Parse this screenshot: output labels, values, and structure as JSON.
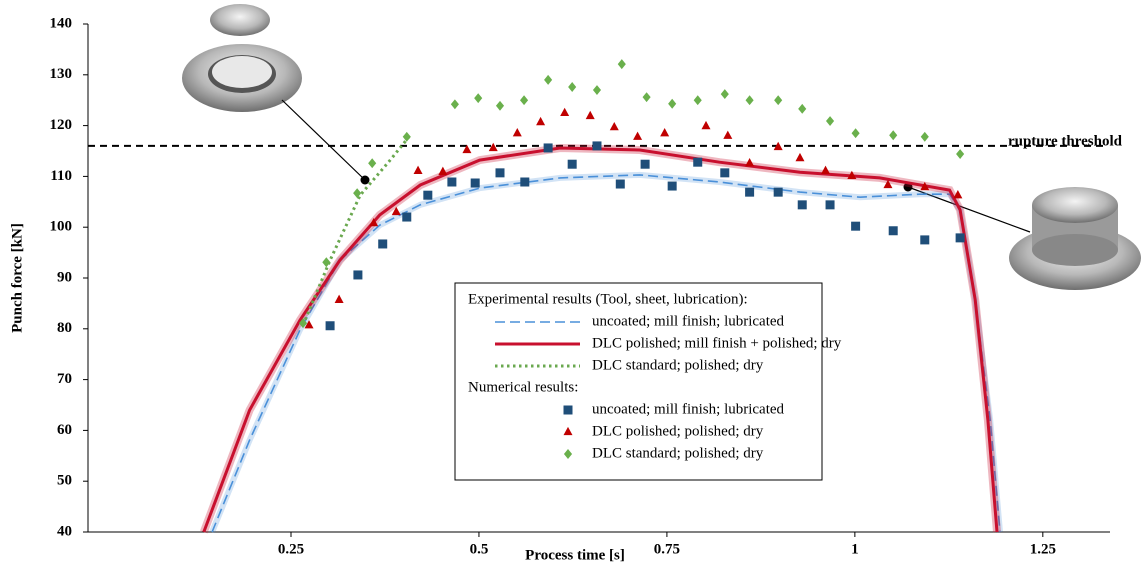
{
  "chart_data": {
    "type": "line",
    "x_label": "Process time [s]",
    "y_label": "Punch force [kN]",
    "xlim": [
      -0.02,
      1.35
    ],
    "ylim": [
      40,
      140
    ],
    "xticks": [
      0.25,
      0.5,
      0.75,
      1,
      1.25
    ],
    "yticks": [
      40,
      50,
      60,
      70,
      80,
      90,
      100,
      110,
      120,
      130,
      140
    ],
    "threshold": {
      "value": 116,
      "label": "rupture threshold"
    },
    "legend_groups": [
      "Experimental results (Tool, sheet, lubrication):",
      "Numerical results:"
    ],
    "series": [
      {
        "name": "uncoated; mill finish; lubricated",
        "group": 0,
        "type": "line",
        "dash": "dashed",
        "color": "#4a90d9",
        "x": [
          0.145,
          0.195,
          0.262,
          0.315,
          0.368,
          0.422,
          0.501,
          0.608,
          0.714,
          0.82,
          0.927,
          1.007,
          1.086,
          1.126,
          1.14,
          1.16,
          1.18,
          1.193
        ],
        "values": [
          40,
          58.1,
          79.8,
          93.5,
          100.4,
          104.4,
          107.7,
          109.7,
          110.3,
          108.9,
          106.9,
          105.9,
          106.5,
          106.5,
          103.4,
          85.7,
          62,
          40
        ]
      },
      {
        "name": "DLC polished; mill finish + polished; dry",
        "group": 0,
        "type": "line",
        "dash": "solid",
        "color": "#c8102e",
        "x": [
          0.134,
          0.195,
          0.262,
          0.315,
          0.368,
          0.422,
          0.501,
          0.608,
          0.714,
          0.82,
          0.927,
          1.033,
          1.126,
          1.14,
          1.16,
          1.177,
          1.189
        ],
        "values": [
          40,
          64,
          81.7,
          93.5,
          102.4,
          108.3,
          113.2,
          115.6,
          115.2,
          112.8,
          110.8,
          109.7,
          107.3,
          103.4,
          85.7,
          62,
          40
        ]
      },
      {
        "name": "DLC standard; polished; dry",
        "group": 0,
        "type": "line",
        "dash": "dotted",
        "color": "#6aa84f",
        "x": [
          0.266,
          0.302,
          0.342,
          0.382,
          0.408
        ],
        "values": [
          80.7,
          93.5,
          106.3,
          113.2,
          118
        ]
      },
      {
        "name": "uncoated; mill finish; lubricated",
        "group": 1,
        "type": "scatter",
        "marker": "square",
        "color": "#1f4e79",
        "x": [
          0.302,
          0.339,
          0.372,
          0.404,
          0.432,
          0.464,
          0.495,
          0.528,
          0.561,
          0.592,
          0.624,
          0.657,
          0.688,
          0.721,
          0.757,
          0.791,
          0.827,
          0.86,
          0.898,
          0.93,
          0.967,
          1.001,
          1.051,
          1.093,
          1.14
        ],
        "values": [
          80.6,
          90.6,
          96.7,
          102,
          106.3,
          108.9,
          108.7,
          110.7,
          108.9,
          115.6,
          112.4,
          116,
          108.5,
          112.4,
          108.1,
          112.8,
          110.7,
          106.9,
          106.9,
          104.4,
          104.4,
          100.2,
          99.3,
          97.5,
          97.9
        ]
      },
      {
        "name": "DLC polished; polished; dry",
        "group": 1,
        "type": "scatter",
        "marker": "triangle",
        "color": "#c00000",
        "x": [
          0.274,
          0.314,
          0.36,
          0.39,
          0.419,
          0.452,
          0.484,
          0.519,
          0.551,
          0.582,
          0.614,
          0.648,
          0.68,
          0.711,
          0.747,
          0.802,
          0.831,
          0.86,
          0.898,
          0.927,
          0.961,
          0.996,
          1.044,
          1.093,
          1.137
        ],
        "values": [
          80.7,
          85.7,
          100.8,
          103,
          111.1,
          110.9,
          115.2,
          115.6,
          118.5,
          120.7,
          122.5,
          121.9,
          119.7,
          117.8,
          118.5,
          119.9,
          118,
          112.6,
          115.8,
          113.6,
          111.1,
          110.1,
          108.3,
          107.9,
          106.3
        ]
      },
      {
        "name": "DLC standard; polished; dry",
        "group": 1,
        "type": "scatter",
        "marker": "diamond",
        "color": "#6ab04c",
        "x": [
          0.266,
          0.297,
          0.338,
          0.358,
          0.404,
          0.468,
          0.499,
          0.528,
          0.56,
          0.592,
          0.624,
          0.657,
          0.69,
          0.723,
          0.757,
          0.791,
          0.827,
          0.86,
          0.898,
          0.93,
          0.967,
          1.001,
          1.051,
          1.093,
          1.14
        ],
        "values": [
          81.1,
          93.1,
          106.7,
          112.6,
          117.8,
          124.2,
          125.4,
          123.9,
          125,
          129,
          127.6,
          127,
          132.1,
          125.6,
          124.3,
          125,
          126.2,
          125,
          125,
          123.3,
          120.9,
          118.5,
          118.1,
          117.8,
          114.4
        ]
      }
    ]
  }
}
